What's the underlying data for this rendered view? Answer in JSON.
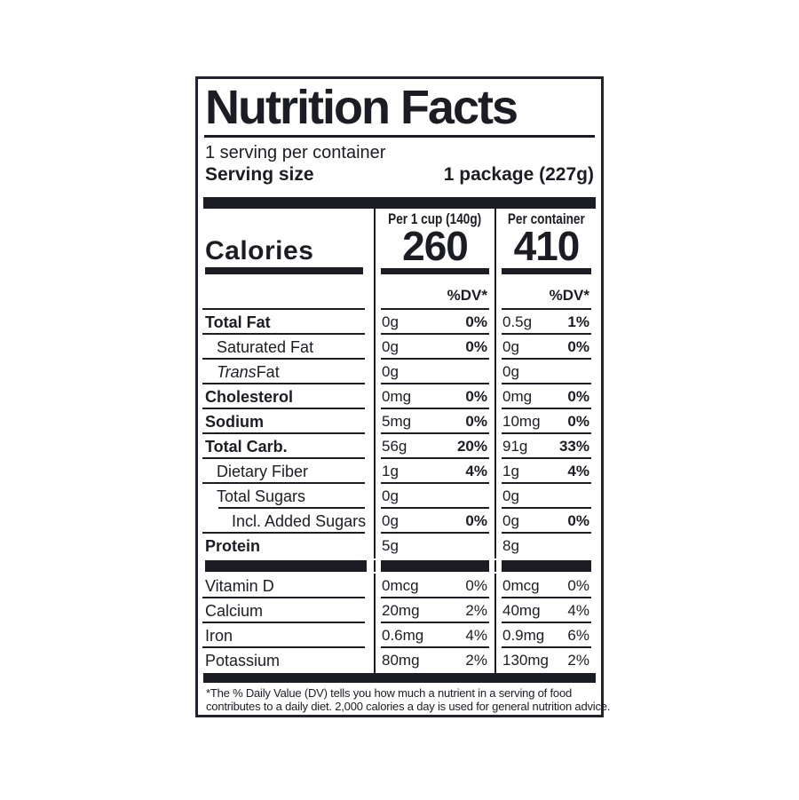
{
  "label": {
    "title": "Nutrition Facts",
    "servings_per_container": "1 serving per container",
    "serving_size": {
      "label": "Serving size",
      "value": "1 package (227g)"
    },
    "calories": {
      "label": "Calories",
      "columns": [
        {
          "header": "Per 1 cup (140g)",
          "value": "260",
          "dv_header": "%DV*"
        },
        {
          "header": "Per container",
          "value": "410",
          "dv_header": "%DV*"
        }
      ]
    },
    "nutrient_rows": [
      {
        "name": "Total Fat",
        "bold": true,
        "indent": 0,
        "col1": {
          "amount": "0g",
          "dv": "0%"
        },
        "col2": {
          "amount": "0.5g",
          "dv": "1%"
        }
      },
      {
        "name": "Saturated Fat",
        "bold": false,
        "indent": 1,
        "col1": {
          "amount": "0g",
          "dv": "0%"
        },
        "col2": {
          "amount": "0g",
          "dv": "0%"
        }
      },
      {
        "name": " Fat",
        "italic_prefix": "Trans",
        "bold": false,
        "indent": 1,
        "col1": {
          "amount": "0g",
          "dv": ""
        },
        "col2": {
          "amount": "0g",
          "dv": ""
        }
      },
      {
        "name": "Cholesterol",
        "bold": true,
        "indent": 0,
        "col1": {
          "amount": "0mg",
          "dv": "0%"
        },
        "col2": {
          "amount": "0mg",
          "dv": "0%"
        }
      },
      {
        "name": "Sodium",
        "bold": true,
        "indent": 0,
        "col1": {
          "amount": "5mg",
          "dv": "0%"
        },
        "col2": {
          "amount": "10mg",
          "dv": "0%"
        }
      },
      {
        "name": "Total Carb.",
        "bold": true,
        "indent": 0,
        "col1": {
          "amount": "56g",
          "dv": "20%"
        },
        "col2": {
          "amount": "91g",
          "dv": "33%"
        }
      },
      {
        "name": "Dietary Fiber",
        "bold": false,
        "indent": 1,
        "col1": {
          "amount": "1g",
          "dv": "4%"
        },
        "col2": {
          "amount": "1g",
          "dv": "4%"
        }
      },
      {
        "name": "Total Sugars",
        "bold": false,
        "indent": 1,
        "rule_below_indented": true,
        "col1": {
          "amount": "0g",
          "dv": ""
        },
        "col2": {
          "amount": "0g",
          "dv": ""
        }
      },
      {
        "name": "Incl. Added Sugars",
        "bold": false,
        "indent": 2,
        "col1": {
          "amount": "0g",
          "dv": "0%"
        },
        "col2": {
          "amount": "0g",
          "dv": "0%"
        }
      },
      {
        "name": "Protein",
        "bold": true,
        "indent": 0,
        "last_in_section": true,
        "col1": {
          "amount": "5g",
          "dv": ""
        },
        "col2": {
          "amount": "8g",
          "dv": ""
        }
      }
    ],
    "micronutrient_rows": [
      {
        "name": "Vitamin D",
        "col1": {
          "amount": "0mcg",
          "dv": "0%"
        },
        "col2": {
          "amount": "0mcg",
          "dv": "0%"
        }
      },
      {
        "name": "Calcium",
        "col1": {
          "amount": "20mg",
          "dv": "2%"
        },
        "col2": {
          "amount": "40mg",
          "dv": "4%"
        }
      },
      {
        "name": "Iron",
        "col1": {
          "amount": "0.6mg",
          "dv": "4%"
        },
        "col2": {
          "amount": "0.9mg",
          "dv": "6%"
        }
      },
      {
        "name": "Potassium",
        "last_in_section": true,
        "col1": {
          "amount": "80mg",
          "dv": "2%"
        },
        "col2": {
          "amount": "130mg",
          "dv": "2%"
        }
      }
    ],
    "footnote": {
      "line1": "*The % Daily Value (DV) tells you how much a nutrient in a serving of food",
      "line2": "contributes to a daily diet. 2,000 calories a day is used for general nutrition advice."
    },
    "colors": {
      "ink": "#1c1c24",
      "border": "#23232f",
      "background": "#ffffff"
    }
  }
}
